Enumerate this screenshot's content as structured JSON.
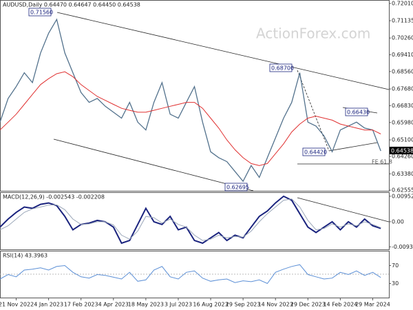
{
  "chart_data": [
    {
      "type": "line",
      "title": "AUDUSD,Daily  0.64470 0.64647 0.64450 0.64538",
      "x": [
        -2,
        -1,
        0,
        1,
        2,
        3,
        4,
        5,
        6,
        7,
        8,
        9,
        10,
        11,
        12,
        13,
        14,
        15,
        16,
        17,
        18,
        19,
        20,
        21,
        22,
        23,
        24,
        25,
        26,
        27,
        28,
        29,
        30,
        31,
        32,
        33,
        34,
        35,
        36,
        37,
        38,
        39,
        40,
        41,
        42,
        43,
        44,
        45
      ],
      "xlim": [
        -2,
        46
      ],
      "xticks": [
        {
          "value": 0,
          "label": "21 Nov 2022"
        },
        {
          "value": 4,
          "label": "4 Jan 2023"
        },
        {
          "value": 8,
          "label": "17 Feb 2023"
        },
        {
          "value": 12,
          "label": "4 Apr 2023"
        },
        {
          "value": 16,
          "label": "18 May 2023"
        },
        {
          "value": 20,
          "label": "3 Jul 2023"
        },
        {
          "value": 24,
          "label": "16 Aug 2023"
        },
        {
          "value": 28,
          "label": "29 Sep 2023"
        },
        {
          "value": 32,
          "label": "14 Nov 2023"
        },
        {
          "value": 36,
          "label": "29 Dec 2023"
        },
        {
          "value": 40,
          "label": "14 Feb 2024"
        },
        {
          "value": 44,
          "label": "29 Mar 2024"
        }
      ],
      "ylim": [
        0.62555,
        0.7201
      ],
      "yticks": [
        {
          "value": 0.7201,
          "label": "0.72010"
        },
        {
          "value": 0.71135,
          "label": "0.71135"
        },
        {
          "value": 0.7026,
          "label": "0.70260"
        },
        {
          "value": 0.6941,
          "label": "0.69410"
        },
        {
          "value": 0.6856,
          "label": "0.68560"
        },
        {
          "value": 0.6768,
          "label": "0.67680"
        },
        {
          "value": 0.6683,
          "label": "0.66830"
        },
        {
          "value": 0.6598,
          "label": "0.65980"
        },
        {
          "value": 0.651,
          "label": "0.65100"
        },
        {
          "value": 0.6426,
          "label": "0.64260"
        },
        {
          "value": 0.6338,
          "label": "0.63380"
        },
        {
          "value": 0.62555,
          "label": "0.62555"
        }
      ],
      "series": [
        {
          "color": "#52718c",
          "values": [
            0.66,
            0.672,
            0.678,
            0.685,
            0.68,
            0.695,
            0.705,
            0.712,
            0.695,
            0.685,
            0.675,
            0.67,
            0.672,
            0.668,
            0.665,
            0.662,
            0.67,
            0.66,
            0.656,
            0.67,
            0.68,
            0.664,
            0.662,
            0.67,
            0.678,
            0.66,
            0.645,
            0.642,
            0.64,
            0.635,
            0.63,
            0.638,
            0.632,
            0.642,
            0.652,
            0.662,
            0.67,
            0.685,
            0.66,
            0.658,
            0.653,
            0.645,
            0.656,
            0.658,
            0.66,
            0.657,
            0.656,
            0.6454
          ]
        },
        {
          "color": "#e03030",
          "values": [
            0.656,
            0.66,
            0.664,
            0.669,
            0.674,
            0.679,
            0.682,
            0.6845,
            0.6855,
            0.683,
            0.679,
            0.676,
            0.673,
            0.671,
            0.669,
            0.667,
            0.666,
            0.665,
            0.665,
            0.666,
            0.667,
            0.668,
            0.669,
            0.67,
            0.67,
            0.667,
            0.662,
            0.657,
            0.651,
            0.646,
            0.642,
            0.639,
            0.638,
            0.639,
            0.644,
            0.649,
            0.655,
            0.659,
            0.662,
            0.663,
            0.662,
            0.661,
            0.659,
            0.658,
            0.657,
            0.656,
            0.656,
            0.654
          ]
        }
      ],
      "annotations": [
        "0.71560",
        "0.62695",
        "0.68700",
        "0.64420",
        "0.66430",
        "FE 61.8"
      ],
      "last_price_label": "0.64538",
      "watermark": "ActionForex.com"
    },
    {
      "type": "line",
      "title": "MACD(12,26,9) -0.002543 -0.002208",
      "ylim": [
        -0.0103,
        0.0105
      ],
      "yticks": [
        0.009524,
        {
          "value": 0,
          "label": "0.00"
        },
        -0.00935
      ],
      "series": [
        {
          "color": "#1a237e",
          "values": [
            -0.002,
            0.001,
            0.0035,
            0.0055,
            0.005,
            0.0065,
            0.007,
            0.006,
            0.002,
            -0.003,
            -0.001,
            -0.0005,
            0.0005,
            0,
            -0.002,
            -0.008,
            -0.007,
            -0.001,
            0.005,
            0,
            -0.001,
            0.002,
            -0.003,
            -0.002,
            -0.007,
            -0.008,
            -0.006,
            -0.004,
            -0.007,
            -0.005,
            -0.006,
            -0.002,
            0.002,
            0.004,
            0.007,
            0.0095,
            0.008,
            0.003,
            -0.002,
            -0.004,
            -0.002,
            0,
            -0.003,
            0,
            -0.002,
            0.001,
            -0.0015,
            -0.0025
          ]
        },
        {
          "color": "#9aa6b8",
          "values": [
            -0.003,
            -0.0015,
            0.001,
            0.0035,
            0.0048,
            0.0055,
            0.0062,
            0.0063,
            0.0045,
            0.001,
            -0.001,
            -0.0008,
            0,
            0,
            -0.0012,
            -0.005,
            -0.0065,
            -0.0035,
            0.002,
            0.0015,
            -0.0005,
            0.001,
            -0.001,
            -0.002,
            -0.005,
            -0.007,
            -0.0065,
            -0.005,
            -0.006,
            -0.0055,
            -0.0057,
            -0.0035,
            0,
            0.003,
            0.0055,
            0.008,
            0.0085,
            0.0055,
            0.0005,
            -0.003,
            -0.0025,
            -0.0008,
            -0.002,
            -0.0008,
            -0.0015,
            0,
            -0.001,
            -0.0022
          ]
        }
      ]
    },
    {
      "type": "line",
      "title": "RSI(14) 43.3963",
      "ylim": [
        0,
        100
      ],
      "yticks": [
        70,
        30
      ],
      "series": [
        {
          "color": "#5b8fd6",
          "values": [
            40,
            50,
            45,
            60,
            62,
            65,
            60,
            68,
            70,
            55,
            45,
            42,
            50,
            48,
            44,
            40,
            55,
            35,
            38,
            60,
            68,
            45,
            40,
            55,
            58,
            42,
            35,
            38,
            40,
            32,
            36,
            34,
            38,
            30,
            55,
            62,
            68,
            72,
            50,
            45,
            40,
            42,
            55,
            50,
            58,
            48,
            55,
            43.4
          ]
        }
      ]
    }
  ]
}
